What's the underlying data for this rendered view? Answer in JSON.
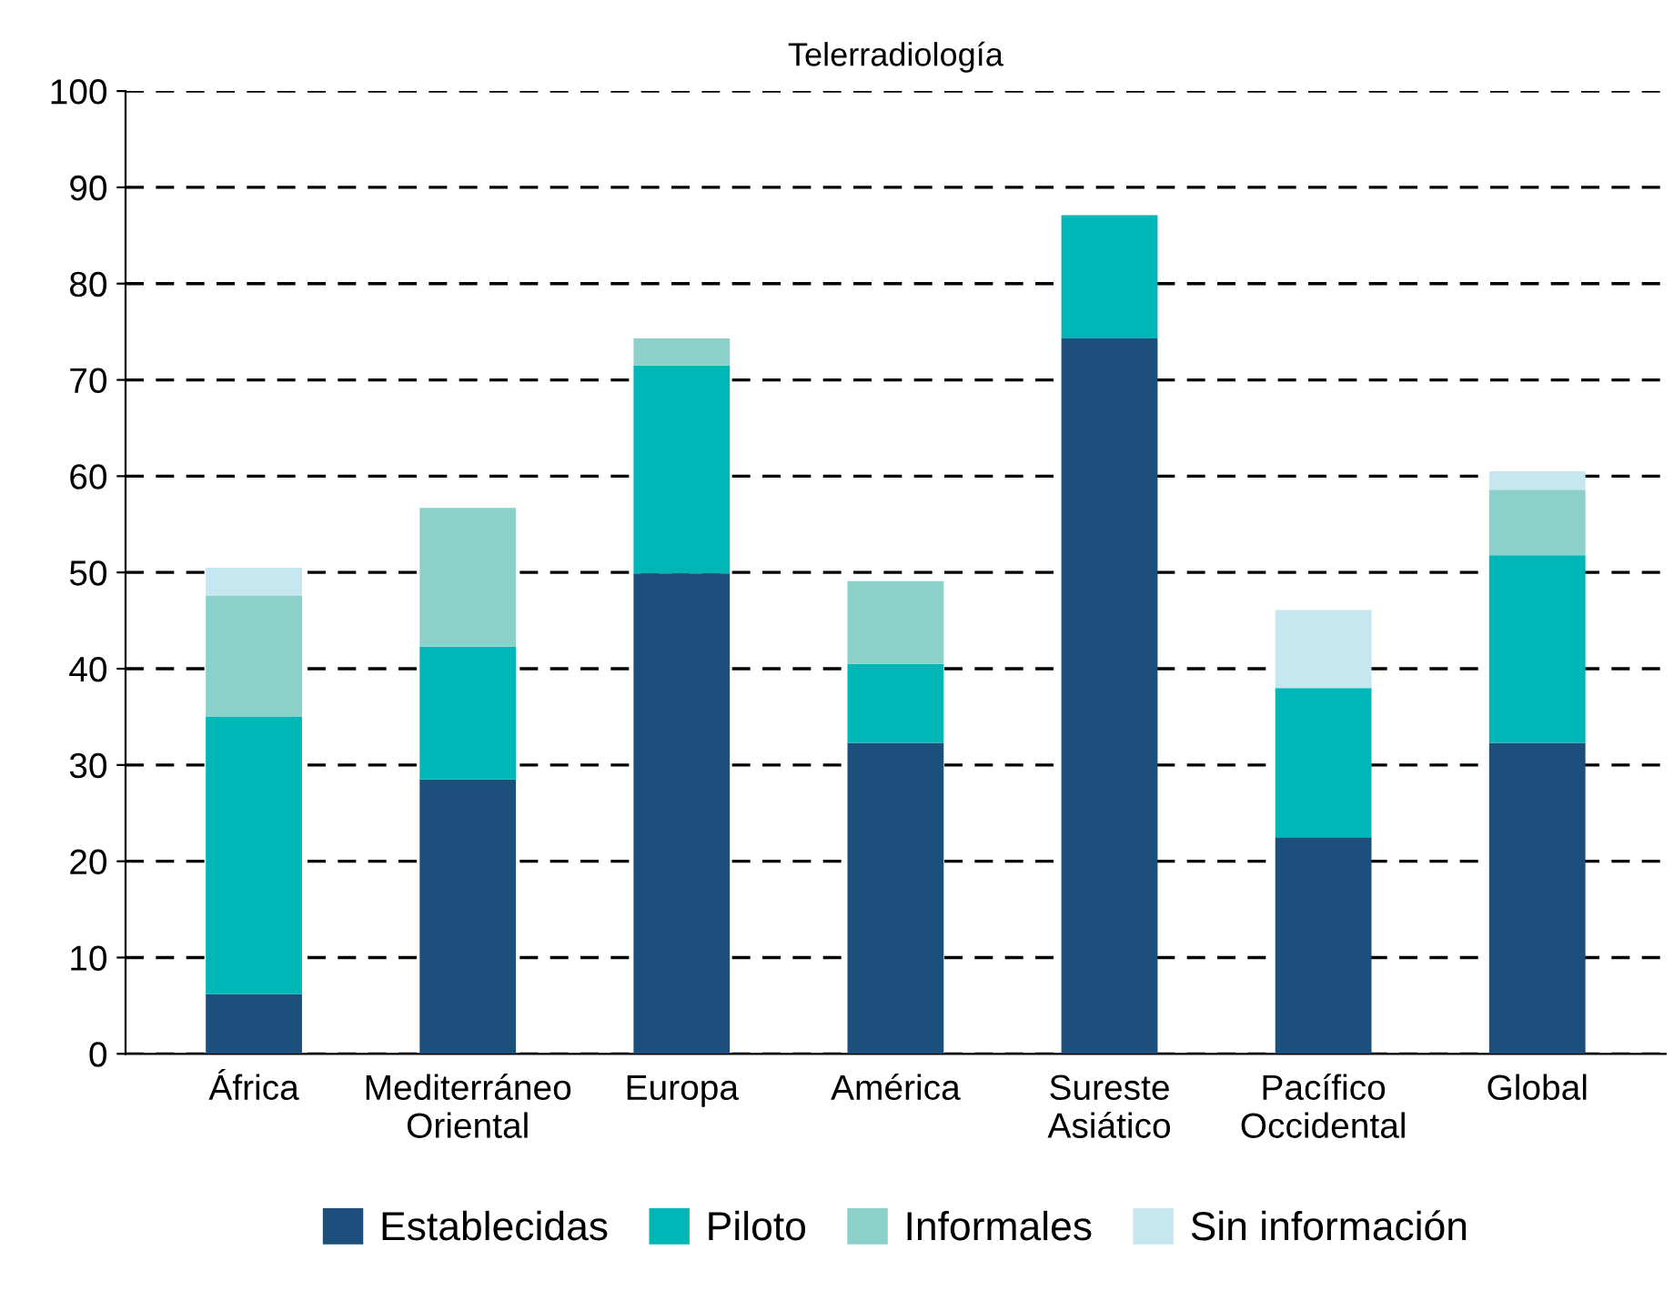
{
  "chart_data": {
    "type": "bar",
    "title": "Telerradiología",
    "stacked": true,
    "categories": [
      "África",
      "Mediterráneo\nOriental",
      "Europa",
      "América",
      "Sureste\nAsiático",
      "Pacífico\nOccidental",
      "Global"
    ],
    "series": [
      {
        "name": "Establecidas",
        "color": "#1d4f7c",
        "values": [
          6.2,
          28.5,
          49.9,
          32.3,
          74.3,
          22.5,
          32.3
        ]
      },
      {
        "name": "Piloto",
        "color": "#00b7b7",
        "values": [
          28.8,
          13.8,
          21.6,
          8.2,
          12.8,
          15.5,
          19.5
        ]
      },
      {
        "name": "Informales",
        "color": "#8bd1c9",
        "values": [
          12.6,
          14.4,
          2.8,
          8.6,
          0,
          0,
          6.8
        ]
      },
      {
        "name": "Sin información",
        "color": "#c6e7ef",
        "values": [
          2.9,
          0,
          0,
          0,
          0,
          8.1,
          1.9
        ]
      }
    ],
    "ylim": [
      0,
      100
    ],
    "yticks": [
      0,
      10,
      20,
      30,
      40,
      50,
      60,
      70,
      80,
      90,
      100
    ],
    "grid": "y",
    "legend": "bottom"
  }
}
